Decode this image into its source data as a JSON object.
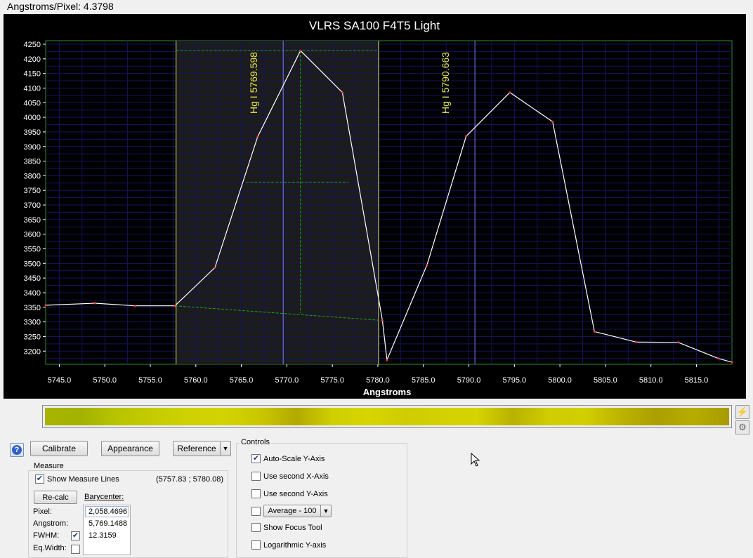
{
  "status": {
    "angstroms_per_pixel": "Angstroms/Pixel: 4.3798"
  },
  "chart_data": {
    "type": "line",
    "title": "VLRS SA100 F4T5 Light",
    "xlabel": "Angstroms",
    "ylabel": "",
    "xlim": [
      5743.5,
      5818.9
    ],
    "ylim": [
      3155,
      4262
    ],
    "xticks": [
      5745,
      5750,
      5755,
      5760,
      5765,
      5770,
      5775,
      5780,
      5785,
      5790,
      5795,
      5800,
      5805,
      5810,
      5815
    ],
    "xtick_labels": [
      "5745.0",
      "5750.0",
      "5755.0",
      "5760.0",
      "5765.0",
      "5770.0",
      "5775.0",
      "5780.0",
      "5785.0",
      "5790.0",
      "5795.0",
      "5800.0",
      "5805.0",
      "5810.0",
      "5815.0"
    ],
    "yticks": [
      3200,
      3250,
      3300,
      3350,
      3400,
      3450,
      3500,
      3550,
      3600,
      3650,
      3700,
      3750,
      3800,
      3850,
      3900,
      3950,
      4000,
      4050,
      4100,
      4150,
      4200,
      4250
    ],
    "ytick_labels": [
      "3200",
      "3250",
      "3300",
      "3350",
      "3400",
      "3450",
      "3500",
      "3550",
      "3600",
      "3650",
      "3700",
      "3750",
      "3800",
      "3850",
      "3900",
      "3950",
      "4000",
      "4050",
      "4100",
      "4150",
      "4200",
      "4250"
    ],
    "grid": true,
    "series": [
      {
        "color": "#ffffff",
        "marker_color": "#ff3b3b",
        "x": [
          5743.5,
          5748.9,
          5753.3,
          5757.7,
          5762.1,
          5766.8,
          5771.5,
          5776.1,
          5780.5,
          5781.0,
          5785.4,
          5789.7,
          5794.5,
          5799.2,
          5803.8,
          5808.4,
          5813.0,
          5817.4,
          5818.9
        ],
        "y": [
          3357,
          3364,
          3355,
          3355,
          3486,
          3934,
          4228,
          4085,
          3305,
          3170,
          3495,
          3935,
          4085,
          3985,
          3267,
          3231,
          3230,
          3175,
          3162
        ]
      }
    ],
    "selection": {
      "x_start": 5757.83,
      "x_end": 5780.08
    },
    "baseline": {
      "x": [
        5757.7,
        5780.5
      ],
      "y": [
        3355,
        3305
      ]
    },
    "measure_crosshair": {
      "x": 5771.5,
      "y_top": 4228,
      "y_mid": 3778,
      "x_left": 5765.5,
      "x_right": 5776.8
    },
    "reference_lines": [
      {
        "x": 5769.598,
        "label": "Hg I 5769.598",
        "color": "#7a7aff"
      },
      {
        "x": 5790.663,
        "label": "Hg I 5790.663",
        "color": "#7a7aff"
      }
    ]
  },
  "spectrum_colors": [
    "#a8b500",
    "#a3b200",
    "#b8c400",
    "#c4cc00",
    "#cfd200",
    "#d2d400",
    "#c9c600",
    "#b3aa00",
    "#cfd000",
    "#d8d600",
    "#cfcc00",
    "#d3d100",
    "#d5d300",
    "#b8b200",
    "#d0cd00",
    "#d2cf00",
    "#bcb300",
    "#aa9f00",
    "#b7ad00",
    "#a79c00"
  ],
  "side_buttons": {
    "lightning_icon": "⚡",
    "gear_icon": "⚙"
  },
  "toolbar": {
    "help": "?",
    "calibrate": "Calibrate",
    "appearance": "Appearance",
    "reference": "Reference"
  },
  "measure": {
    "title": "Measure",
    "show_lines": "Show Measure Lines",
    "range": "(5757.83 ; 5780.08)",
    "recalc": "Re-calc",
    "barycenter": "Barycenter:",
    "pixel_label": "Pixel:",
    "pixel_value": "2,058.4696",
    "angstrom_label": "Angstrom:",
    "angstrom_value": "5,769.1488",
    "fwhm_label": "FWHM:",
    "fwhm_value": "12.3159",
    "eqwidth_label": "Eq.Width:",
    "eqwidth_value": ""
  },
  "controls": {
    "title": "Controls",
    "auto_scale": "Auto-Scale Y-Axis",
    "second_x": "Use second X-Axis",
    "second_y": "Use second Y-Axis",
    "average": "Average - 100",
    "focus_tool": "Show Focus Tool",
    "log_y": "Logarithmic Y-axis"
  }
}
